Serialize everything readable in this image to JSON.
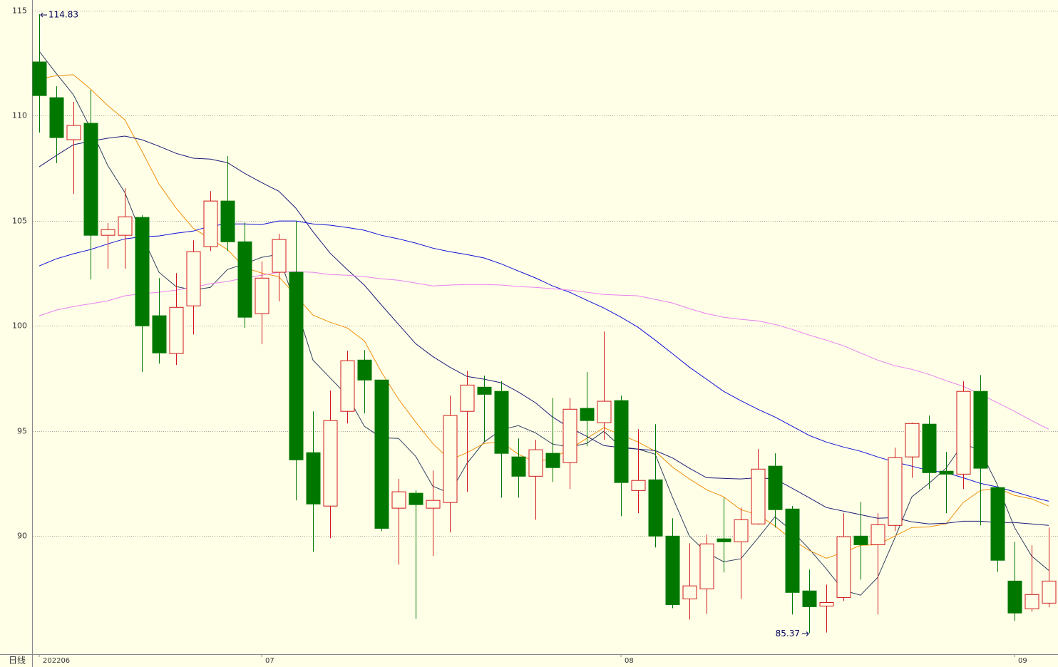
{
  "chart_data": {
    "type": "candlestick",
    "period_label": "日线",
    "categories": [
      "202206",
      null,
      null,
      null,
      null,
      null,
      null,
      null,
      null,
      null,
      null,
      null,
      null,
      "07",
      null,
      null,
      null,
      null,
      null,
      null,
      null,
      null,
      null,
      null,
      null,
      null,
      null,
      null,
      null,
      null,
      null,
      null,
      null,
      null,
      "08",
      null,
      null,
      null,
      null,
      null,
      null,
      null,
      null,
      null,
      null,
      null,
      null,
      null,
      null,
      null,
      null,
      null,
      null,
      null,
      null,
      null,
      null,
      "09",
      null,
      null
    ],
    "open": [
      112.56,
      110.86,
      108.86,
      109.64,
      104.31,
      104.31,
      105.16,
      100.48,
      98.68,
      100.95,
      103.77,
      105.94,
      104.0,
      100.58,
      102.55,
      102.55,
      93.96,
      91.42,
      95.93,
      98.37,
      97.42,
      91.32,
      92.03,
      91.32,
      91.59,
      95.93,
      97.08,
      96.88,
      93.76,
      92.84,
      93.93,
      93.49,
      96.07,
      95.39,
      96.44,
      92.16,
      92.67,
      89.99,
      87.0,
      87.48,
      89.86,
      89.72,
      90.57,
      93.32,
      91.28,
      87.38,
      86.66,
      87.07,
      89.99,
      89.58,
      90.5,
      93.76,
      95.32,
      93.08,
      92.94,
      96.88,
      92.3,
      87.85,
      86.53,
      86.8
    ],
    "high": [
      114.83,
      111.4,
      110.66,
      111.23,
      104.89,
      106.55,
      105.26,
      102.27,
      102.51,
      104.07,
      106.41,
      108.08,
      104.92,
      103.06,
      104.38,
      104.99,
      95.93,
      96.92,
      98.81,
      98.85,
      97.42,
      92.71,
      92.17,
      93.11,
      96.68,
      97.86,
      97.63,
      97.36,
      94.64,
      94.57,
      96.57,
      96.57,
      97.8,
      99.73,
      96.68,
      95.08,
      95.32,
      90.84,
      89.65,
      90.06,
      91.82,
      91.35,
      94.13,
      93.93,
      91.42,
      88.4,
      87.68,
      91.08,
      91.62,
      91.08,
      94.2,
      95.39,
      95.73,
      94.0,
      97.36,
      97.66,
      92.33,
      89.72,
      89.55,
      90.4
    ],
    "low": [
      109.2,
      107.74,
      106.28,
      102.21,
      102.72,
      102.72,
      97.8,
      98.2,
      98.14,
      99.59,
      103.56,
      103.56,
      99.9,
      99.12,
      101.16,
      91.69,
      89.24,
      89.89,
      95.35,
      95.83,
      90.23,
      88.63,
      86.05,
      89.04,
      90.16,
      92.1,
      94.47,
      91.82,
      91.82,
      90.77,
      92.57,
      92.23,
      94.27,
      94.57,
      90.94,
      91.08,
      89.45,
      86.56,
      86.02,
      86.29,
      88.26,
      87.0,
      90.53,
      90.4,
      86.26,
      85.37,
      85.4,
      86.9,
      87.92,
      86.26,
      90.23,
      92.77,
      92.23,
      91.08,
      92.23,
      90.5,
      88.29,
      85.95,
      86.39,
      86.6
    ],
    "close": [
      110.96,
      108.96,
      109.54,
      104.31,
      104.58,
      105.19,
      100.0,
      98.71,
      100.88,
      103.53,
      105.94,
      104.0,
      100.41,
      102.27,
      104.11,
      93.62,
      91.52,
      95.49,
      98.34,
      97.42,
      90.36,
      92.1,
      91.49,
      91.69,
      95.73,
      97.18,
      96.74,
      93.93,
      92.84,
      94.1,
      93.25,
      96.03,
      95.49,
      96.41,
      92.54,
      92.64,
      89.99,
      86.73,
      87.62,
      89.62,
      89.72,
      90.77,
      93.18,
      91.25,
      87.31,
      86.63,
      86.83,
      89.96,
      89.58,
      90.53,
      93.72,
      95.35,
      93.01,
      92.94,
      96.88,
      93.22,
      88.84,
      86.33,
      87.21,
      87.85
    ],
    "up_color": "#d01818",
    "down_color": "#007800",
    "series": [
      {
        "color": "#2f3f5f",
        "values": [
          113.07,
          112.01,
          111.0,
          109.4,
          107.64,
          106.35,
          104.31,
          102.55,
          101.87,
          101.7,
          101.83,
          102.68,
          102.95,
          103.26,
          103.4,
          100.92,
          98.37,
          97.52,
          96.68,
          95.22,
          94.67,
          94.64,
          93.79,
          92.37,
          92.03,
          93.45,
          94.47,
          95.05,
          95.25,
          94.91,
          94.37,
          94.23,
          94.4,
          94.98,
          94.23,
          94.13,
          93.89,
          91.86,
          89.99,
          89.21,
          88.77,
          88.91,
          89.89,
          90.91,
          90.23,
          89.38,
          88.43,
          87.41,
          87.18,
          88.02,
          89.89,
          91.86,
          92.5,
          93.22,
          94.4,
          94.06,
          92.43,
          90.4,
          89.04,
          88.36
        ]
      },
      {
        "color": "#f0900a",
        "values": [
          111.74,
          111.91,
          111.95,
          111.27,
          110.49,
          109.81,
          108.32,
          106.75,
          105.6,
          104.65,
          104.14,
          103.63,
          102.78,
          102.51,
          102.34,
          101.43,
          100.51,
          100.17,
          99.9,
          99.29,
          97.8,
          96.51,
          95.42,
          94.4,
          93.62,
          93.96,
          94.4,
          94.47,
          93.89,
          93.52,
          93.69,
          94.13,
          94.64,
          95.15,
          94.81,
          94.47,
          94.03,
          93.28,
          92.71,
          92.2,
          91.86,
          91.25,
          91.01,
          90.47,
          89.82,
          89.31,
          88.94,
          89.21,
          89.55,
          89.58,
          89.99,
          90.4,
          90.43,
          90.57,
          91.59,
          92.16,
          92.27,
          91.93,
          91.76,
          91.42
        ]
      },
      {
        "color": "#1c1c78",
        "values": [
          107.57,
          108.11,
          108.62,
          108.79,
          108.93,
          109.03,
          108.86,
          108.55,
          108.21,
          107.98,
          107.94,
          107.77,
          107.26,
          106.82,
          106.41,
          105.6,
          104.48,
          103.46,
          102.68,
          101.94,
          100.99,
          100.07,
          99.15,
          98.54,
          98.03,
          97.59,
          97.46,
          97.29,
          96.85,
          96.34,
          95.66,
          95.15,
          94.74,
          94.3,
          94.2,
          94.13,
          94.06,
          93.72,
          93.22,
          92.77,
          92.74,
          92.71,
          92.77,
          92.71,
          92.27,
          91.82,
          91.35,
          91.18,
          91.01,
          90.84,
          90.87,
          90.67,
          90.57,
          90.6,
          90.7,
          90.7,
          90.64,
          90.64,
          90.57,
          90.5
        ]
      },
      {
        "color": "#1010d8",
        "values": [
          102.85,
          103.19,
          103.43,
          103.63,
          103.9,
          104.14,
          104.24,
          104.28,
          104.41,
          104.51,
          104.75,
          104.85,
          104.85,
          104.82,
          104.99,
          104.99,
          104.85,
          104.79,
          104.68,
          104.55,
          104.31,
          104.14,
          103.94,
          103.7,
          103.53,
          103.39,
          103.23,
          102.95,
          102.61,
          102.28,
          101.9,
          101.6,
          101.22,
          100.85,
          100.41,
          99.93,
          99.32,
          98.68,
          98.03,
          97.46,
          96.88,
          96.44,
          96.03,
          95.66,
          95.22,
          94.78,
          94.47,
          94.23,
          94.03,
          93.76,
          93.52,
          93.32,
          93.11,
          93.01,
          92.77,
          92.5,
          92.33,
          92.1,
          91.86,
          91.65
        ]
      },
      {
        "color": "#e880f0",
        "values": [
          100.48,
          100.75,
          100.92,
          101.05,
          101.19,
          101.43,
          101.53,
          101.6,
          101.7,
          101.83,
          102.0,
          102.11,
          102.28,
          102.41,
          102.55,
          102.58,
          102.55,
          102.44,
          102.41,
          102.34,
          102.24,
          102.17,
          102.04,
          101.9,
          101.94,
          101.97,
          101.97,
          101.94,
          101.87,
          101.83,
          101.77,
          101.7,
          101.6,
          101.49,
          101.46,
          101.43,
          101.26,
          101.09,
          100.82,
          100.58,
          100.41,
          100.31,
          100.24,
          100.07,
          99.83,
          99.56,
          99.32,
          99.05,
          98.71,
          98.37,
          98.1,
          97.93,
          97.69,
          97.39,
          97.12,
          96.74,
          96.34,
          95.93,
          95.49,
          95.08
        ]
      }
    ],
    "annotations": [
      {
        "value": 114.83,
        "label": "114.83"
      },
      {
        "value": 85.37,
        "label": "85.37"
      }
    ],
    "ylim": [
      84.37,
      115.51
    ],
    "yticks": [
      90,
      95,
      100,
      105,
      110,
      115
    ],
    "grid": true
  }
}
